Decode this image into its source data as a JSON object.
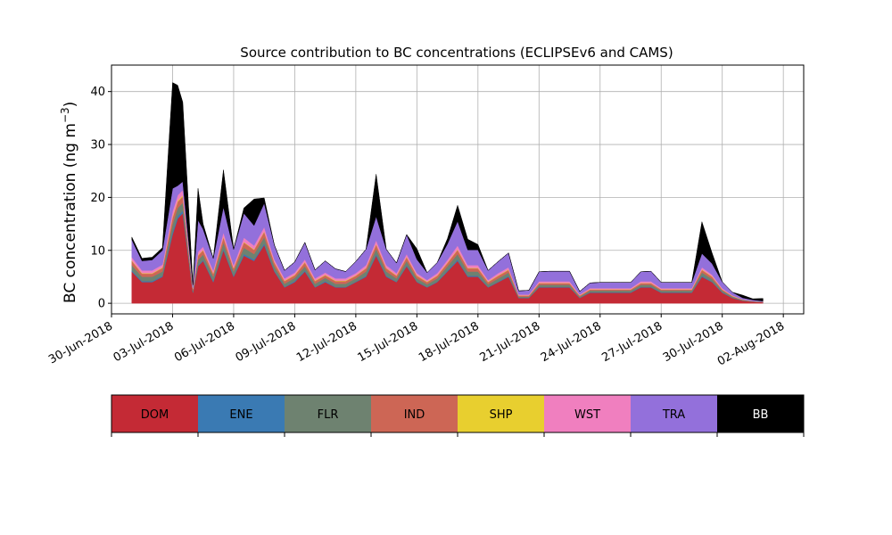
{
  "chart_data": {
    "type": "area",
    "title": "Source contribution to BC concentrations (ECLIPSEv6 and CAMS)",
    "xlabel": "",
    "ylabel": "BC concentration (ng m",
    "ylabel_sup": "−3",
    "ylabel_end": ")",
    "ylim": [
      -2,
      45
    ],
    "yticks": [
      0,
      10,
      20,
      30,
      40
    ],
    "xlim": [
      "2018-06-30",
      "2018-08-03"
    ],
    "xticks": [
      "30-Jun-2018",
      "03-Jul-2018",
      "06-Jul-2018",
      "09-Jul-2018",
      "12-Jul-2018",
      "15-Jul-2018",
      "18-Jul-2018",
      "21-Jul-2018",
      "24-Jul-2018",
      "27-Jul-2018",
      "30-Jul-2018",
      "02-Aug-2018"
    ],
    "grid": true,
    "stacked": true,
    "legend_position": "bottom-colorbar",
    "x": [
      "2018-07-01",
      "2018-07-01 12:00",
      "2018-07-02",
      "2018-07-02 12:00",
      "2018-07-03",
      "2018-07-03 06:00",
      "2018-07-03 12:00",
      "2018-07-04",
      "2018-07-04 06:00",
      "2018-07-04 12:00",
      "2018-07-05",
      "2018-07-05 12:00",
      "2018-07-06",
      "2018-07-06 12:00",
      "2018-07-07",
      "2018-07-07 12:00",
      "2018-07-08",
      "2018-07-08 12:00",
      "2018-07-09",
      "2018-07-09 12:00",
      "2018-07-10",
      "2018-07-10 12:00",
      "2018-07-11",
      "2018-07-11 12:00",
      "2018-07-12",
      "2018-07-12 12:00",
      "2018-07-13",
      "2018-07-13 12:00",
      "2018-07-14",
      "2018-07-14 12:00",
      "2018-07-15",
      "2018-07-15 12:00",
      "2018-07-16",
      "2018-07-16 12:00",
      "2018-07-17",
      "2018-07-17 12:00",
      "2018-07-18",
      "2018-07-18 12:00",
      "2018-07-19",
      "2018-07-19 12:00",
      "2018-07-20",
      "2018-07-20 12:00",
      "2018-07-21",
      "2018-07-21 12:00",
      "2018-07-22",
      "2018-07-22 12:00",
      "2018-07-23",
      "2018-07-23 12:00",
      "2018-07-24",
      "2018-07-24 12:00",
      "2018-07-25",
      "2018-07-25 12:00",
      "2018-07-26",
      "2018-07-26 12:00",
      "2018-07-27",
      "2018-07-27 12:00",
      "2018-07-28",
      "2018-07-28 12:00",
      "2018-07-29",
      "2018-07-29 12:00",
      "2018-07-30",
      "2018-07-30 12:00",
      "2018-07-31",
      "2018-07-31 12:00",
      "2018-08-01"
    ],
    "series": [
      {
        "name": "DOM",
        "color": "#c42a35",
        "values": [
          6,
          4,
          4,
          5,
          13,
          16,
          17,
          2,
          7,
          8,
          4,
          10,
          5,
          9,
          8,
          11,
          6,
          3,
          4,
          6,
          3,
          4,
          3,
          3,
          4,
          5,
          9,
          5,
          4,
          7,
          4,
          3,
          4,
          6,
          8,
          5,
          5,
          3,
          4,
          5,
          1,
          1,
          3,
          3,
          3,
          3,
          1,
          2,
          2,
          2,
          2,
          2,
          3,
          3,
          2,
          2,
          2,
          2,
          5,
          4,
          2,
          1,
          0.5,
          0.3,
          0.2
        ]
      },
      {
        "name": "ENE",
        "color": "#3a7ab3",
        "values": [
          0.2,
          0.2,
          0.2,
          0.2,
          0.5,
          0.5,
          0.5,
          0.1,
          0.2,
          0.2,
          0.2,
          0.3,
          0.2,
          0.3,
          0.3,
          0.3,
          0.2,
          0.1,
          0.2,
          0.2,
          0.1,
          0.2,
          0.1,
          0.1,
          0.1,
          0.2,
          0.3,
          0.2,
          0.1,
          0.2,
          0.1,
          0.1,
          0.1,
          0.2,
          0.3,
          0.2,
          0.2,
          0.1,
          0.1,
          0.2,
          0.05,
          0.05,
          0.1,
          0.1,
          0.1,
          0.1,
          0.05,
          0.1,
          0.1,
          0.1,
          0.1,
          0.1,
          0.1,
          0.1,
          0.1,
          0.1,
          0.1,
          0.1,
          0.2,
          0.1,
          0.1,
          0.05,
          0.02,
          0.02,
          0.01
        ]
      },
      {
        "name": "FLR",
        "color": "#6e8270",
        "values": [
          1,
          0.8,
          0.8,
          0.8,
          1.5,
          1.5,
          1.5,
          0.3,
          1,
          1,
          0.8,
          1.2,
          0.8,
          1.2,
          1,
          1.2,
          0.8,
          0.6,
          0.6,
          0.8,
          0.6,
          0.6,
          0.6,
          0.6,
          0.6,
          0.8,
          1,
          0.8,
          0.6,
          0.8,
          0.6,
          0.5,
          0.6,
          0.8,
          1,
          0.8,
          0.8,
          0.5,
          0.6,
          0.6,
          0.2,
          0.2,
          0.4,
          0.4,
          0.4,
          0.4,
          0.2,
          0.3,
          0.3,
          0.3,
          0.3,
          0.3,
          0.4,
          0.4,
          0.3,
          0.3,
          0.3,
          0.3,
          0.6,
          0.5,
          0.3,
          0.2,
          0.1,
          0.05,
          0.05
        ]
      },
      {
        "name": "IND",
        "color": "#cd6655",
        "values": [
          0.8,
          0.6,
          0.6,
          0.7,
          1.2,
          1.2,
          1.2,
          0.3,
          0.8,
          0.8,
          0.6,
          1,
          0.6,
          1,
          0.8,
          1,
          0.7,
          0.5,
          0.5,
          0.7,
          0.5,
          0.5,
          0.5,
          0.5,
          0.5,
          0.6,
          0.8,
          0.6,
          0.5,
          0.7,
          0.5,
          0.4,
          0.5,
          0.6,
          0.8,
          0.6,
          0.6,
          0.4,
          0.5,
          0.5,
          0.2,
          0.2,
          0.3,
          0.3,
          0.3,
          0.3,
          0.2,
          0.2,
          0.2,
          0.2,
          0.2,
          0.2,
          0.3,
          0.3,
          0.2,
          0.2,
          0.2,
          0.2,
          0.5,
          0.4,
          0.2,
          0.1,
          0.05,
          0.04,
          0.03
        ]
      },
      {
        "name": "SHP",
        "color": "#e8cf2f",
        "values": [
          0.1,
          0.1,
          0.1,
          0.1,
          0.2,
          0.2,
          0.2,
          0.05,
          0.1,
          0.1,
          0.1,
          0.1,
          0.1,
          0.1,
          0.1,
          0.1,
          0.1,
          0.1,
          0.1,
          0.1,
          0.1,
          0.1,
          0.1,
          0.1,
          0.1,
          0.1,
          0.1,
          0.1,
          0.1,
          0.1,
          0.1,
          0.1,
          0.1,
          0.1,
          0.1,
          0.1,
          0.1,
          0.1,
          0.1,
          0.1,
          0.05,
          0.05,
          0.05,
          0.05,
          0.05,
          0.05,
          0.05,
          0.05,
          0.05,
          0.05,
          0.05,
          0.05,
          0.05,
          0.05,
          0.05,
          0.05,
          0.05,
          0.05,
          0.1,
          0.1,
          0.05,
          0.05,
          0.02,
          0.01,
          0.01
        ]
      },
      {
        "name": "WST",
        "color": "#f07fbf",
        "values": [
          0.6,
          0.5,
          0.5,
          0.5,
          1,
          1,
          1,
          0.2,
          0.6,
          0.6,
          0.5,
          0.8,
          0.5,
          0.8,
          0.7,
          0.8,
          0.5,
          0.4,
          0.4,
          0.5,
          0.4,
          0.4,
          0.4,
          0.4,
          0.4,
          0.5,
          0.7,
          0.5,
          0.4,
          0.5,
          0.4,
          0.3,
          0.4,
          0.5,
          0.7,
          0.5,
          0.5,
          0.3,
          0.4,
          0.4,
          0.15,
          0.15,
          0.3,
          0.3,
          0.3,
          0.3,
          0.15,
          0.2,
          0.2,
          0.2,
          0.2,
          0.2,
          0.3,
          0.3,
          0.2,
          0.2,
          0.2,
          0.2,
          0.4,
          0.3,
          0.2,
          0.1,
          0.05,
          0.03,
          0.02
        ]
      },
      {
        "name": "TRA",
        "color": "#9370db",
        "values": [
          3.3,
          1.8,
          2,
          2.7,
          4.3,
          1.8,
          1.6,
          0.5,
          6,
          3.3,
          2.3,
          4.8,
          3,
          4.6,
          3.8,
          4.5,
          2.7,
          1.5,
          2,
          3.2,
          1.6,
          2.2,
          1.8,
          1.3,
          2.2,
          3,
          4.5,
          3,
          1.9,
          3.7,
          2.6,
          1.4,
          2,
          3,
          4.6,
          2.9,
          2.9,
          1.8,
          2.2,
          2.7,
          0.7,
          0.8,
          1.8,
          1.9,
          1.9,
          1.9,
          0.6,
          1,
          1.1,
          1.1,
          1.1,
          1.1,
          1.8,
          1.9,
          1.1,
          1.1,
          1.1,
          1.1,
          2.6,
          2.1,
          1.2,
          0.6,
          0.3,
          0.2,
          0.1
        ]
      },
      {
        "name": "BB",
        "color": "#000000",
        "values": [
          0.5,
          0.5,
          0.5,
          0.5,
          20,
          19,
          15,
          0,
          6,
          1,
          0,
          7,
          0,
          1,
          5,
          1,
          0,
          0,
          0,
          0,
          0,
          0,
          0,
          0,
          0,
          0,
          8,
          0,
          0,
          0,
          2,
          0,
          0,
          1,
          3,
          2,
          1,
          0,
          0,
          0,
          0,
          0,
          0,
          0,
          0,
          0,
          0,
          0,
          0,
          0,
          0,
          0,
          0,
          0,
          0,
          0,
          0,
          0,
          6,
          2,
          0,
          0,
          0.5,
          0.2,
          0.5
        ]
      }
    ]
  }
}
